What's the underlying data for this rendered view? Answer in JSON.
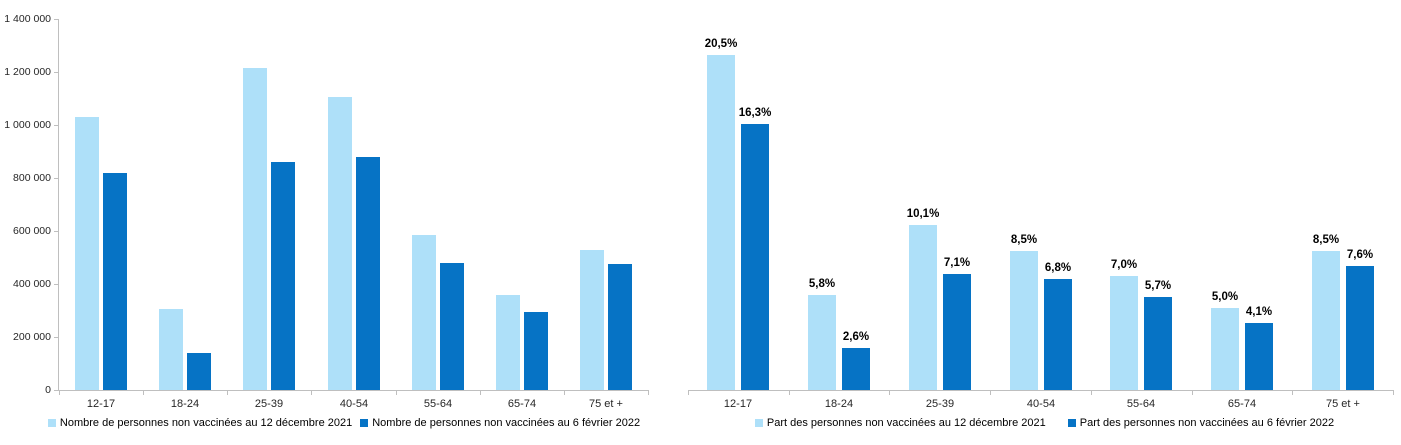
{
  "page": {
    "background": "#ffffff"
  },
  "colors": {
    "series_light": "#AEE0F9",
    "series_dark": "#0673C5",
    "axis": "#bfbfbf",
    "text": "#262626"
  },
  "chart_data": [
    {
      "type": "bar",
      "title": "",
      "xlabel": "",
      "ylabel": "",
      "categories": [
        "12-17",
        "18-24",
        "25-39",
        "40-54",
        "55-64",
        "65-74",
        "75 et +"
      ],
      "series": [
        {
          "name": "Nombre de personnes non vaccinées au 12 décembre 2021",
          "color": "#AEE0F9",
          "values": [
            1030000,
            305000,
            1215000,
            1105000,
            585000,
            360000,
            530000
          ]
        },
        {
          "name": "Nombre de personnes non vaccinées au 6 février 2022",
          "color": "#0673C5",
          "values": [
            820000,
            140000,
            860000,
            880000,
            480000,
            295000,
            475000
          ]
        }
      ],
      "ylim": [
        0,
        1400000
      ],
      "yticks": {
        "values": [
          0,
          200000,
          400000,
          600000,
          800000,
          1000000,
          1200000,
          1400000
        ],
        "labels": [
          "0",
          "200 000",
          "400 000",
          "600 000",
          "800 000",
          "1 000 000",
          "1 200 000",
          "1 400 000"
        ]
      },
      "grid": false,
      "data_labels": false,
      "legend_position": "bottom"
    },
    {
      "type": "bar",
      "title": "",
      "xlabel": "",
      "ylabel": "",
      "categories": [
        "12-17",
        "18-24",
        "25-39",
        "40-54",
        "55-64",
        "65-74",
        "75 et +"
      ],
      "series": [
        {
          "name": "Part des personnes non vaccinées au 12 décembre 2021",
          "color": "#AEE0F9",
          "values": [
            20.5,
            5.8,
            10.1,
            8.5,
            7.0,
            5.0,
            8.5
          ],
          "labels": [
            "20,5%",
            "5,8%",
            "10,1%",
            "8,5%",
            "7,0%",
            "5,0%",
            "8,5%"
          ]
        },
        {
          "name": "Part des personnes non vaccinées au 6 février 2022",
          "color": "#0673C5",
          "values": [
            16.3,
            2.6,
            7.1,
            6.8,
            5.7,
            4.1,
            7.6
          ],
          "labels": [
            "16,3%",
            "2,6%",
            "7,1%",
            "6,8%",
            "5,7%",
            "4,1%",
            "7,6%"
          ]
        }
      ],
      "ylim": [
        0,
        22.7
      ],
      "yticks": null,
      "grid": false,
      "data_labels": true,
      "legend_position": "bottom"
    }
  ]
}
